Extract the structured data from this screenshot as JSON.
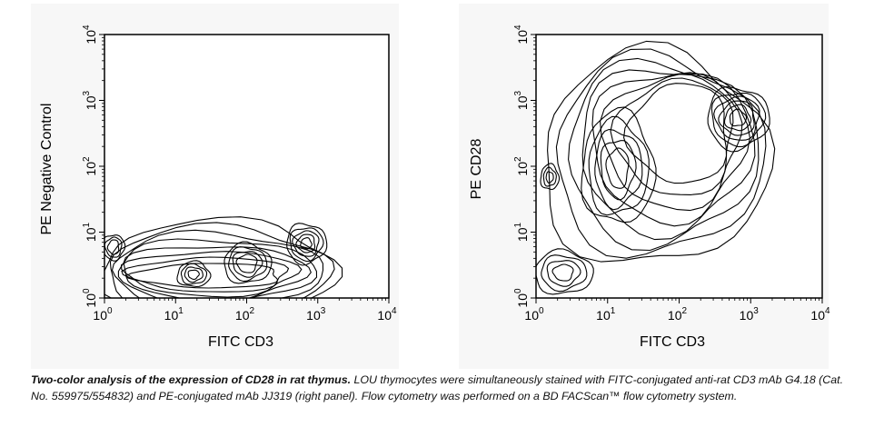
{
  "chart_data": [
    {
      "type": "contour",
      "panel": "left",
      "xlabel": "FITC CD3",
      "ylabel": "PE Negative Control",
      "x_scale": "log",
      "y_scale": "log",
      "xlim": [
        1,
        10000
      ],
      "ylim": [
        1,
        10000
      ],
      "x_ticks": [
        {
          "base": "10",
          "exp": "0"
        },
        {
          "base": "10",
          "exp": "1"
        },
        {
          "base": "10",
          "exp": "2"
        },
        {
          "base": "10",
          "exp": "3"
        },
        {
          "base": "10",
          "exp": "4"
        }
      ],
      "y_ticks": [
        {
          "base": "10",
          "exp": "0"
        },
        {
          "base": "10",
          "exp": "1"
        },
        {
          "base": "10",
          "exp": "2"
        },
        {
          "base": "10",
          "exp": "3"
        },
        {
          "base": "10",
          "exp": "4"
        }
      ],
      "populations": [
        {
          "x": 1.6,
          "y": 2.0
        },
        {
          "x": 30,
          "y": 2.5
        },
        {
          "x": 1000,
          "y": 4.0
        }
      ]
    },
    {
      "type": "contour",
      "panel": "right",
      "xlabel": "FITC CD3",
      "ylabel": "PE CD28",
      "x_scale": "log",
      "y_scale": "log",
      "xlim": [
        1,
        10000
      ],
      "ylim": [
        1,
        10000
      ],
      "x_ticks": [
        {
          "base": "10",
          "exp": "0"
        },
        {
          "base": "10",
          "exp": "1"
        },
        {
          "base": "10",
          "exp": "2"
        },
        {
          "base": "10",
          "exp": "3"
        },
        {
          "base": "10",
          "exp": "4"
        }
      ],
      "y_ticks": [
        {
          "base": "10",
          "exp": "0"
        },
        {
          "base": "10",
          "exp": "1"
        },
        {
          "base": "10",
          "exp": "2"
        },
        {
          "base": "10",
          "exp": "3"
        },
        {
          "base": "10",
          "exp": "4"
        }
      ],
      "populations": [
        {
          "x": 10,
          "y": 100
        },
        {
          "x": 1000,
          "y": 400
        },
        {
          "x": 300,
          "y": 300
        }
      ]
    }
  ],
  "caption": {
    "title": "Two-color analysis of the expression of CD28 in rat thymus.",
    "body": " LOU thymocytes were simultaneously stained with FITC-conjugated anti-rat CD3 mAb G4.18 (Cat. No. 559975/554832) and PE-conjugated mAb JJ319 (right panel). Flow cytometry was performed on a BD FACScan™ flow cytometry system."
  }
}
